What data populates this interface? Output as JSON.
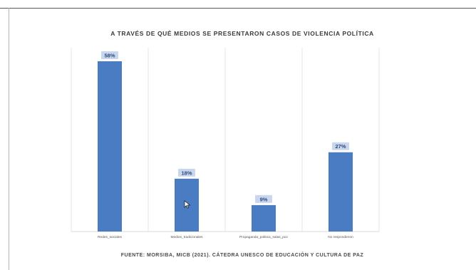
{
  "chart_data": {
    "type": "bar",
    "title": "A TRAVÉS DE QUÉ MEDIOS SE PRESENTARON CASOS DE VIOLENCIA POLÍTICA",
    "categories": [
      "Redes_sociales",
      "Medios_tradicionales",
      "Propaganda_politica_salas_poc",
      "No respondieron"
    ],
    "values": [
      58,
      18,
      9,
      27
    ],
    "data_labels": [
      "58%",
      "18%",
      "9%",
      "27%"
    ],
    "ylim": [
      0,
      60
    ],
    "grid": "vertical separators",
    "legend": "none",
    "bar_color": "#4a7cc4",
    "label_bg": "#c9d7ee",
    "label_color": "#2e4a7a",
    "source": "FUENTE: MORSIBA, MICB (2021). CÁTEDRA UNESCO DE EDUCACIÓN Y CULTURA DE PAZ"
  }
}
